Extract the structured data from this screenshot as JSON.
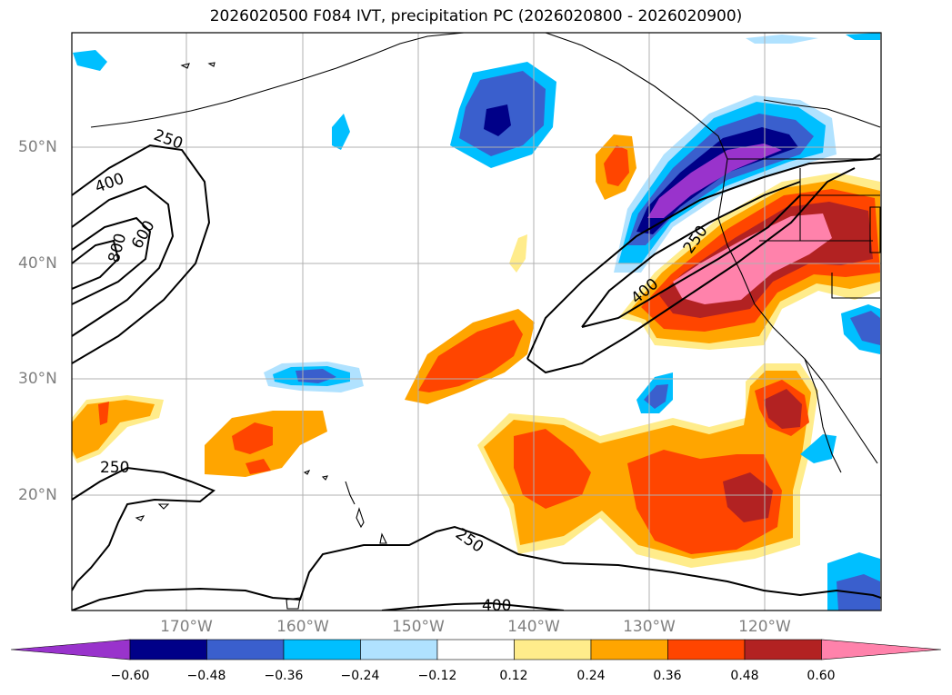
{
  "title": "2026020500 F084 IVT, precipitation PC (2026020800 - 2026020900)",
  "lat_labels": [
    "50°N",
    "40°N",
    "30°N",
    "20°N"
  ],
  "lon_labels": [
    "170°W",
    "160°W",
    "150°W",
    "140°W",
    "130°W",
    "120°W"
  ],
  "contour_labels": [
    "250",
    "400",
    "600",
    "800",
    "250",
    "400",
    "250",
    "250",
    "400"
  ],
  "colorbar": {
    "ticks": [
      "−0.60",
      "−0.48",
      "−0.36",
      "−0.24",
      "−0.12",
      "0.12",
      "0.24",
      "0.36",
      "0.48",
      "0.60"
    ],
    "colors": {
      "lt_-0.60": "#9933cc",
      "-0.60_-0.48": "#000088",
      "-0.48_-0.36": "#3a5fcd",
      "-0.36_-0.24": "#00bfff",
      "-0.24_-0.12": "#b0e2ff",
      "-0.12_0.12": "#ffffff",
      "0.12_0.24": "#ffec8b",
      "0.24_0.36": "#ffa500",
      "0.36_0.48": "#ff4500",
      "0.48_0.60": "#b22222",
      "gt_0.60": "#ff82ab"
    }
  }
}
